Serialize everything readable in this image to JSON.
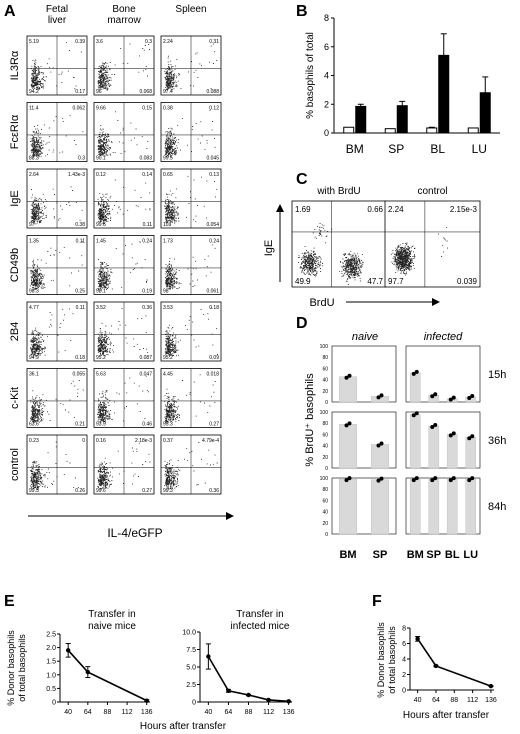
{
  "panels": {
    "A": "A",
    "B": "B",
    "C": "C",
    "D": "D",
    "E": "E",
    "F": "F"
  },
  "panel_a": {
    "columns": [
      "Fetal\nliver",
      "Bone\nmarrow",
      "Spleen"
    ],
    "rows": [
      "IL3Rα",
      "FcεRIα",
      "IgE",
      "CD49b",
      "2B4",
      "c-Kit",
      "control"
    ],
    "xlabel": "IL-4/eGFP",
    "quadrants": [
      [
        [
          "5.19",
          "0.39",
          "94.2",
          "0.17"
        ],
        [
          "3.6",
          "0.3",
          "96",
          "0.068"
        ],
        [
          "2.24",
          "0.31",
          "97.4",
          "0.088"
        ]
      ],
      [
        [
          "11.4",
          "0.062",
          "88.3",
          "0.3"
        ],
        [
          "9.66",
          "0.15",
          "90.1",
          "0.083"
        ],
        [
          "0.38",
          "0.12",
          "99.5",
          "0.045"
        ]
      ],
      [
        [
          "2.64",
          "1.43e-3",
          "97",
          "0.38"
        ],
        [
          "0.12",
          "0.14",
          "99.6",
          "0.11"
        ],
        [
          "0.65",
          "0.13",
          "103",
          "0.054"
        ]
      ],
      [
        [
          "1.35",
          "0.11",
          "98.3",
          "0.25"
        ],
        [
          "1.45",
          "0.24",
          "98.1",
          "0.19"
        ],
        [
          "1.73",
          "0.24",
          "98",
          "0.061"
        ]
      ],
      [
        [
          "4.77",
          "0.11",
          "94.9",
          "0.18"
        ],
        [
          "3.52",
          "0.36",
          "95.2",
          "0.087"
        ],
        [
          "3.53",
          "0.18",
          "95.2",
          "0.09"
        ]
      ],
      [
        [
          "36.1",
          "0.055",
          "63.6",
          "0.21"
        ],
        [
          "5.63",
          "0.047",
          "93.9",
          "0.46"
        ],
        [
          "4.45",
          "0.018",
          "95.3",
          "0.27"
        ]
      ],
      [
        [
          "0.23",
          "0",
          "99.5",
          "0.26"
        ],
        [
          "0.16",
          "2.18e-3",
          "99.6",
          "0.27"
        ],
        [
          "0.37",
          "4.79e-4",
          "99.3",
          "0.36"
        ]
      ]
    ]
  },
  "panel_c": {
    "titles": [
      "with BrdU",
      "control"
    ],
    "ylabel": "IgE",
    "xlabel": "BrdU",
    "quadrants": [
      [
        "1.69",
        "0.66",
        "49.9",
        "47.7"
      ],
      [
        "2.24",
        "2.15e-3",
        "97.7",
        "0.039"
      ]
    ]
  },
  "chart_data": [
    {
      "id": "B",
      "type": "bar",
      "categories": [
        "BM",
        "SP",
        "BL",
        "LU"
      ],
      "ylabel": "% basophils of total",
      "ylim": [
        0,
        8
      ],
      "yticks": [
        0,
        2,
        4,
        6,
        8
      ],
      "series": [
        {
          "values": [
            0.4,
            0.3,
            0.35,
            0.35
          ],
          "errors": [
            0,
            0,
            0.05,
            0
          ],
          "color": "#ffffff"
        },
        {
          "values": [
            1.85,
            1.9,
            5.4,
            2.8
          ],
          "errors": [
            0.15,
            0.3,
            1.5,
            1.1
          ],
          "color": "#000000"
        }
      ]
    },
    {
      "id": "D",
      "type": "bar",
      "ylabel": "% BrdU⁺ basophils",
      "groups": [
        "naive",
        "infected"
      ],
      "timepoints": [
        "15h",
        "36h",
        "84h"
      ],
      "ylim": [
        0,
        100
      ],
      "yticks": [
        "0",
        "20",
        "40",
        "60",
        "80",
        "100"
      ],
      "naive": {
        "categories": [
          "BM",
          "SP"
        ],
        "values": [
          [
            45,
            10
          ],
          [
            78,
            42
          ],
          [
            98,
            97
          ]
        ]
      },
      "infected": {
        "categories": [
          "BM",
          "SP",
          "BL",
          "LU"
        ],
        "values": [
          [
            52,
            12,
            6,
            9
          ],
          [
            96,
            75,
            60,
            55
          ],
          [
            98,
            98,
            98,
            98
          ]
        ]
      }
    },
    {
      "id": "E1",
      "type": "line",
      "title": "Transfer in\nnaive mice",
      "ylabel": "% Donor basophils\nof total basophils",
      "xlabel": "Hours after transfer",
      "x": [
        40,
        64,
        136
      ],
      "values": [
        1.9,
        1.1,
        0.05
      ],
      "errors": [
        0.25,
        0.2,
        0.03
      ],
      "xticks": [
        "40",
        "64",
        "88",
        "112",
        "136"
      ],
      "ylim": [
        0,
        2.5
      ],
      "yticks": [
        "0",
        "0.5",
        "1.0",
        "1.5",
        "2.0",
        "2.5"
      ]
    },
    {
      "id": "E2",
      "type": "line",
      "title": "Transfer in\ninfected mice",
      "x": [
        40,
        64,
        88,
        112,
        136
      ],
      "values": [
        6.5,
        1.6,
        1.0,
        0.3,
        0.1
      ],
      "errors": [
        1.8,
        0.2,
        0.1,
        0.05,
        0.03
      ],
      "xticks": [
        "40",
        "64",
        "88",
        "112",
        "136"
      ],
      "ylim": [
        0,
        10
      ],
      "yticks": [
        "0",
        "2.5",
        "5.0",
        "7.5",
        "10.0"
      ]
    },
    {
      "id": "F",
      "type": "line",
      "ylabel": "% Donor basophils\nof total basophils",
      "xlabel": "Hours after transfer",
      "x": [
        40,
        64,
        136
      ],
      "values": [
        6.6,
        3.1,
        0.5
      ],
      "errors": [
        0.3,
        0.1,
        0.05
      ],
      "xticks": [
        "40",
        "64",
        "88",
        "112",
        "136"
      ],
      "ylim": [
        0,
        8
      ],
      "yticks": [
        "0",
        "2",
        "4",
        "6",
        "8"
      ]
    }
  ]
}
